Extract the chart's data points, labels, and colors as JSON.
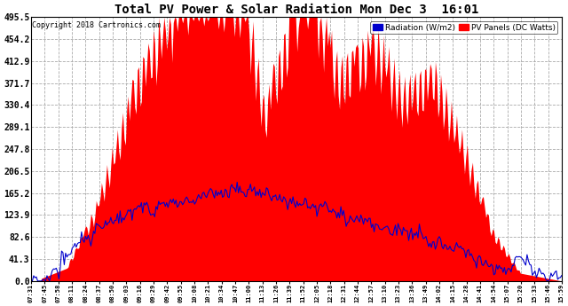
{
  "title": "Total PV Power & Solar Radiation Mon Dec 3  16:01",
  "copyright": "Copyright 2018 Cartronics.com",
  "legend_radiation": "Radiation (W/m2)",
  "legend_pv": "PV Panels (DC Watts)",
  "yticks": [
    0.0,
    41.3,
    82.6,
    123.9,
    165.2,
    206.5,
    247.8,
    289.1,
    330.4,
    371.7,
    412.9,
    454.2,
    495.5
  ],
  "ymax": 495.5,
  "ymin": 0.0,
  "background_color": "#ffffff",
  "plot_bg_color": "#ffffff",
  "grid_color": "#aaaaaa",
  "pv_fill_color": "#ff0000",
  "radiation_line_color": "#0000cc",
  "xtick_labels": [
    "07:31",
    "07:45",
    "07:58",
    "08:11",
    "08:24",
    "08:37",
    "08:50",
    "09:03",
    "09:16",
    "09:29",
    "09:42",
    "09:55",
    "10:08",
    "10:21",
    "10:34",
    "10:47",
    "11:00",
    "11:13",
    "11:26",
    "11:39",
    "11:52",
    "12:05",
    "12:18",
    "12:31",
    "12:44",
    "12:57",
    "13:10",
    "13:23",
    "13:36",
    "13:49",
    "14:02",
    "14:15",
    "14:28",
    "14:41",
    "14:54",
    "15:07",
    "15:20",
    "15:33",
    "15:46",
    "15:59"
  ]
}
